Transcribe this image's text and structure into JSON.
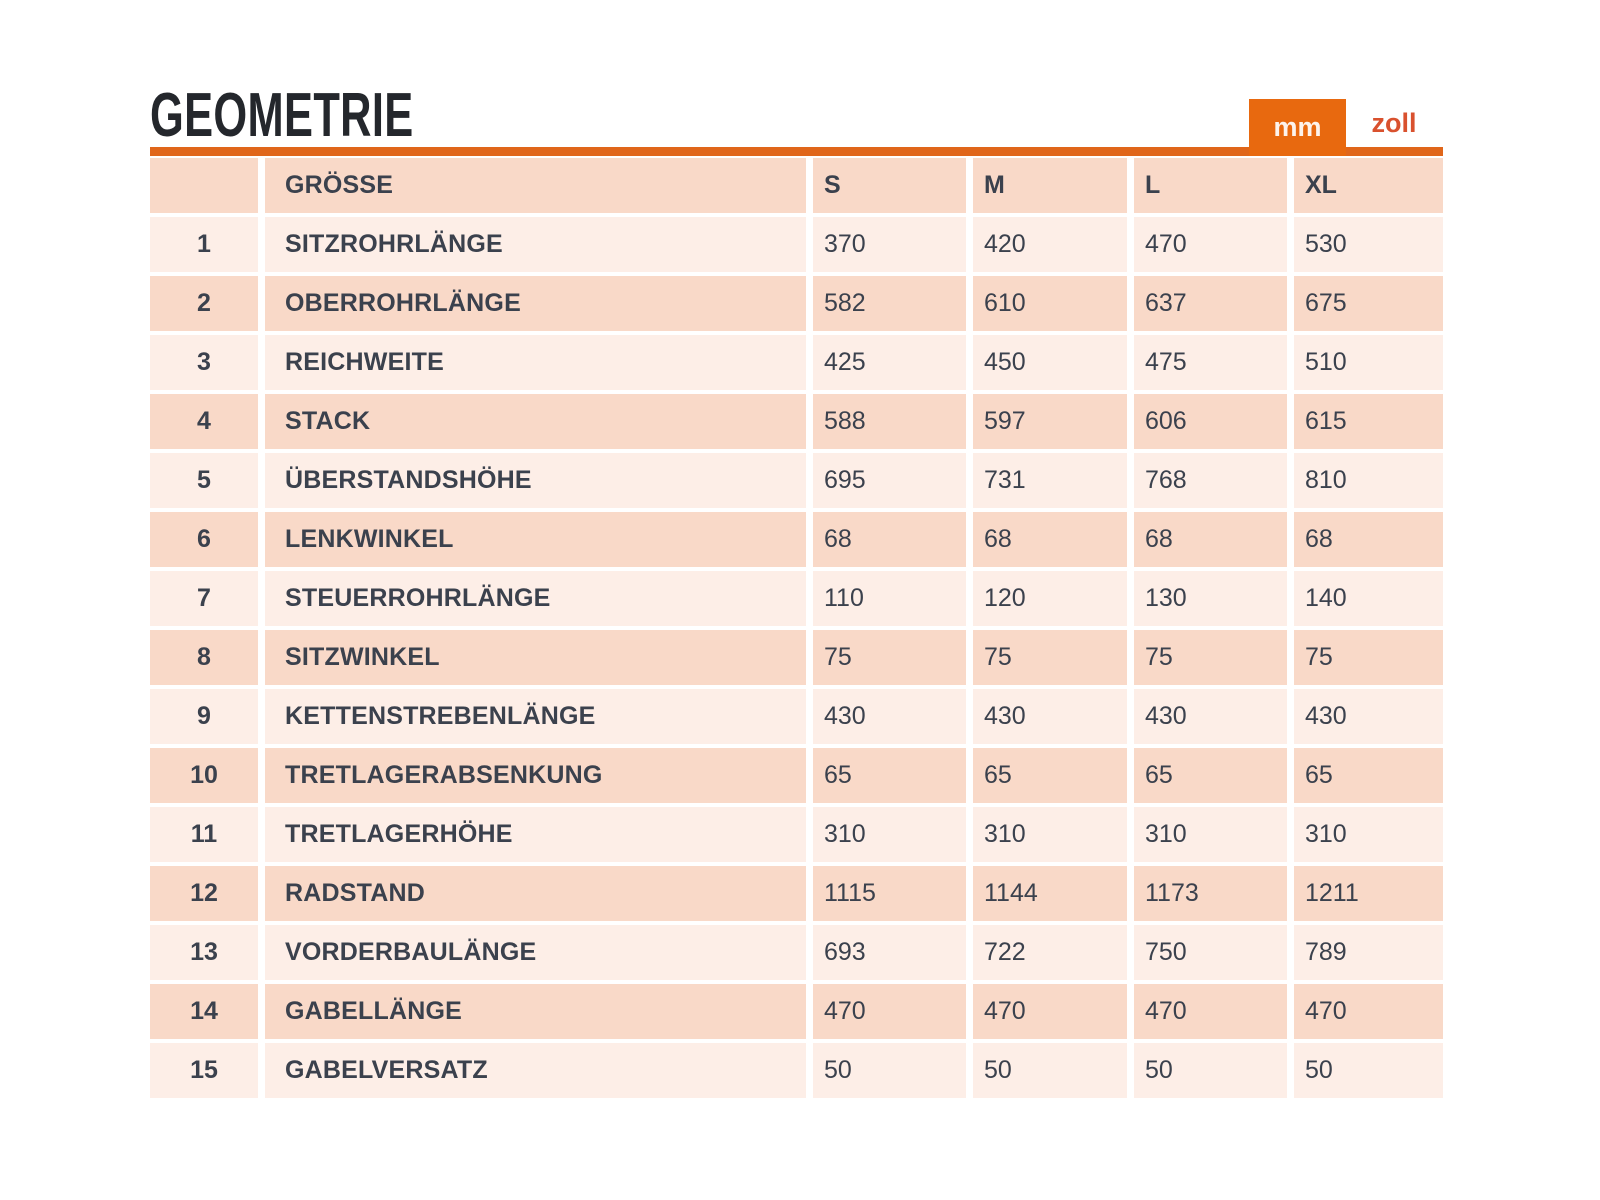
{
  "title": "GEOMETRIE",
  "unit_toggle": {
    "mm_label": "mm",
    "zoll_label": "zoll",
    "active": "mm"
  },
  "colors": {
    "accent_orange": "#e8690f",
    "rule_orange": "#e0661a",
    "zoll_text": "#d9512e",
    "row_dark": "#f9d9c8",
    "row_light": "#fdeee7",
    "table_text": "#3b414d",
    "title_text": "#24272c"
  },
  "table": {
    "size_header": "GRÖSSE",
    "columns": [
      "S",
      "M",
      "L",
      "XL"
    ],
    "rows": [
      {
        "num": "1",
        "label": "SITZROHRLÄNGE",
        "values": [
          "370",
          "420",
          "470",
          "530"
        ]
      },
      {
        "num": "2",
        "label": "OBERROHRLÄNGE",
        "values": [
          "582",
          "610",
          "637",
          "675"
        ]
      },
      {
        "num": "3",
        "label": "REICHWEITE",
        "values": [
          "425",
          "450",
          "475",
          "510"
        ]
      },
      {
        "num": "4",
        "label": "STACK",
        "values": [
          "588",
          "597",
          "606",
          "615"
        ]
      },
      {
        "num": "5",
        "label": "ÜBERSTANDSHÖHE",
        "values": [
          "695",
          "731",
          "768",
          "810"
        ]
      },
      {
        "num": "6",
        "label": "LENKWINKEL",
        "values": [
          "68",
          "68",
          "68",
          "68"
        ]
      },
      {
        "num": "7",
        "label": "STEUERROHRLÄNGE",
        "values": [
          "110",
          "120",
          "130",
          "140"
        ]
      },
      {
        "num": "8",
        "label": "SITZWINKEL",
        "values": [
          "75",
          "75",
          "75",
          "75"
        ]
      },
      {
        "num": "9",
        "label": "KETTENSTREBENLÄNGE",
        "values": [
          "430",
          "430",
          "430",
          "430"
        ]
      },
      {
        "num": "10",
        "label": "TRETLAGERABSENKUNG",
        "values": [
          "65",
          "65",
          "65",
          "65"
        ]
      },
      {
        "num": "11",
        "label": "TRETLAGERHÖHE",
        "values": [
          "310",
          "310",
          "310",
          "310"
        ]
      },
      {
        "num": "12",
        "label": "RADSTAND",
        "values": [
          "1115",
          "1144",
          "1173",
          "1211"
        ]
      },
      {
        "num": "13",
        "label": "VORDERBAULÄNGE",
        "values": [
          "693",
          "722",
          "750",
          "789"
        ]
      },
      {
        "num": "14",
        "label": "GABELLÄNGE",
        "values": [
          "470",
          "470",
          "470",
          "470"
        ]
      },
      {
        "num": "15",
        "label": "GABELVERSATZ",
        "values": [
          "50",
          "50",
          "50",
          "50"
        ]
      }
    ]
  }
}
